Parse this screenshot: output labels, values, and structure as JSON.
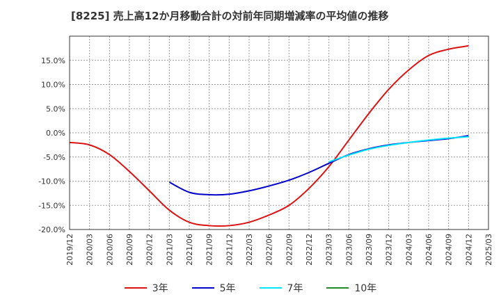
{
  "title": "[8225]  売上高12か月移動合計の対前年同期増減率の平均値の推移",
  "colors": {
    "3年": "#dd1111",
    "5年": "#0000cc",
    "7年": "#00e5ff",
    "10年": "#228b22"
  },
  "chart_data": {
    "type": "line",
    "title": "[8225]  売上高12か月移動合計の対前年同期増減率の平均値の推移",
    "xlabel": "",
    "ylabel": "",
    "ylim": [
      -20,
      20
    ],
    "yticks": [
      "15.0%",
      "10.0%",
      "5.0%",
      "0.0%",
      "-5.0%",
      "-10.0%",
      "-15.0%",
      "-20.0%"
    ],
    "xticks": [
      "2019/12",
      "2020/03",
      "2020/06",
      "2020/09",
      "2020/12",
      "2021/03",
      "2021/06",
      "2021/09",
      "2021/12",
      "2022/03",
      "2022/06",
      "2022/09",
      "2022/12",
      "2023/03",
      "2023/06",
      "2023/09",
      "2023/12",
      "2024/03",
      "2024/06",
      "2024/09",
      "2024/12",
      "2025/03"
    ],
    "grid": true,
    "legend_position": "bottom",
    "series": [
      {
        "name": "3年",
        "x": [
          "2019/12",
          "2020/03",
          "2020/06",
          "2020/09",
          "2020/12",
          "2021/03",
          "2021/06",
          "2021/09",
          "2021/12",
          "2022/03",
          "2022/06",
          "2022/09",
          "2022/12",
          "2023/03",
          "2023/06",
          "2023/09",
          "2023/12",
          "2024/03",
          "2024/06",
          "2024/09",
          "2024/12"
        ],
        "values": [
          -2.0,
          -2.5,
          -4.5,
          -8.0,
          -12.0,
          -16.0,
          -18.5,
          -19.2,
          -19.2,
          -18.5,
          -17.0,
          -15.0,
          -11.5,
          -7.0,
          -1.5,
          4.0,
          9.0,
          13.0,
          16.0,
          17.3,
          18.0
        ]
      },
      {
        "name": "5年",
        "x": [
          "2021/03",
          "2021/06",
          "2021/09",
          "2021/12",
          "2022/03",
          "2022/06",
          "2022/09",
          "2022/12",
          "2023/03",
          "2023/06",
          "2023/09",
          "2023/12",
          "2024/03",
          "2024/06",
          "2024/09",
          "2024/12"
        ],
        "values": [
          -10.2,
          -12.3,
          -12.8,
          -12.7,
          -12.0,
          -11.0,
          -9.8,
          -8.2,
          -6.3,
          -4.5,
          -3.3,
          -2.5,
          -2.0,
          -1.6,
          -1.2,
          -0.6
        ]
      },
      {
        "name": "7年",
        "x": [
          "2023/03",
          "2023/06",
          "2023/09",
          "2023/12",
          "2024/03",
          "2024/06",
          "2024/09",
          "2024/12"
        ],
        "values": [
          -6.0,
          -4.6,
          -3.4,
          -2.6,
          -2.0,
          -1.5,
          -1.1,
          -0.8
        ]
      },
      {
        "name": "10年",
        "x": [],
        "values": []
      }
    ]
  }
}
